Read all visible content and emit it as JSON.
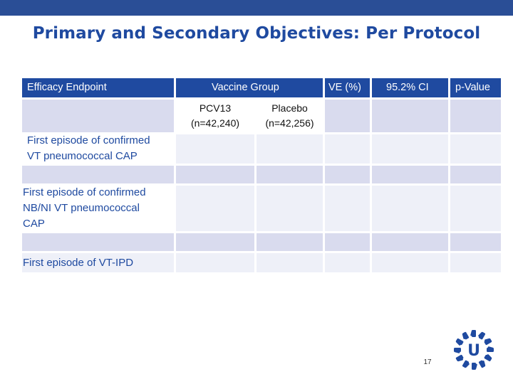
{
  "slide": {
    "title": "Primary and Secondary Objectives: Per Protocol",
    "page_number": "17"
  },
  "table": {
    "headers": {
      "endpoint": "Efficacy Endpoint",
      "vaccine_group": "Vaccine Group",
      "ve": "VE (%)",
      "ci": "95.2% CI",
      "pvalue": "p-Value"
    },
    "subheaders": {
      "pcv13_line1": "PCV13",
      "pcv13_line2": "(n=42,240)",
      "placebo_line1": "Placebo",
      "placebo_line2": "(n=42,256)"
    },
    "rows": [
      {
        "line1": "First episode of confirmed",
        "line2": "VT pneumococcal CAP",
        "line3": ""
      },
      {
        "line1": "First episode of confirmed",
        "line2": "NB/NI VT pneumococcal",
        "line3": "CAP"
      },
      {
        "line1": "First episode of VT-IPD",
        "line2": "",
        "line3": ""
      }
    ]
  },
  "logo": {
    "icon": "university-logo-icon",
    "letter": "U",
    "color": "#1f4aa0"
  }
}
